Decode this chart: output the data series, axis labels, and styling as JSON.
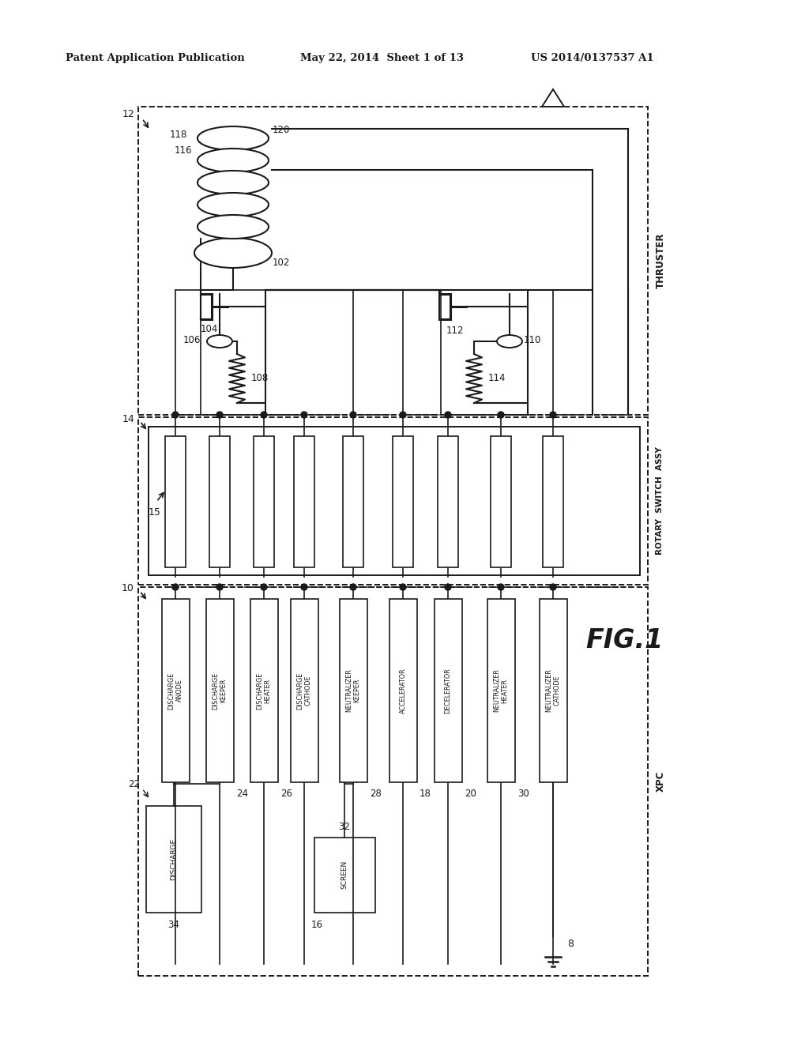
{
  "bg_color": "#ffffff",
  "header_left": "Patent Application Publication",
  "header_mid": "May 22, 2014  Sheet 1 of 13",
  "header_right": "US 2014/0137537 A1",
  "fig_label": "FIG.1",
  "black": "#1a1a1a"
}
